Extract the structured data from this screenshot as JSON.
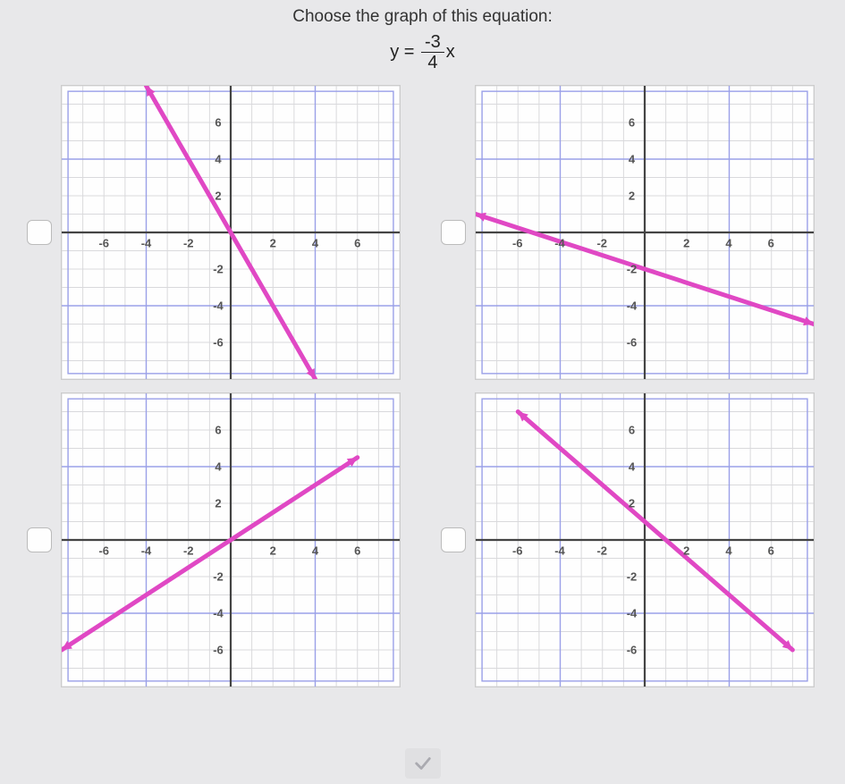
{
  "prompt": "Choose the graph of this equation:",
  "equation": {
    "lhs": "y =",
    "numerator": "-3",
    "denominator": "4",
    "rhs": "x"
  },
  "graph_common": {
    "xlim": [
      -8,
      8
    ],
    "ylim": [
      -8,
      8
    ],
    "major": [
      -6,
      -4,
      -2,
      2,
      4,
      6
    ],
    "minor_step": 1,
    "bg_color": "#ffffff",
    "minor_grid_color": "#d9d9dc",
    "major_grid_color": "#9aa0e8",
    "axis_color": "#444444",
    "label_color": "#555555",
    "label_fontsize": 13,
    "line_color": "#e048c4",
    "arrow_size": 12,
    "line_width": 5
  },
  "options": [
    {
      "id": "a",
      "line": {
        "x1": -4,
        "y1": 8,
        "x2": 4,
        "y2": -8
      },
      "arrows": "both"
    },
    {
      "id": "b",
      "line": {
        "x1": -8,
        "y1": 1,
        "x2": 8,
        "y2": -5
      },
      "arrows": "both"
    },
    {
      "id": "c",
      "line": {
        "x1": -8,
        "y1": -6,
        "x2": 6,
        "y2": 4.5
      },
      "arrows": "both"
    },
    {
      "id": "d",
      "line": {
        "x1": -6,
        "y1": 7,
        "x2": 7,
        "y2": -6
      },
      "arrows": "both"
    }
  ],
  "submit": {
    "tick_color": "#aaaab0"
  }
}
